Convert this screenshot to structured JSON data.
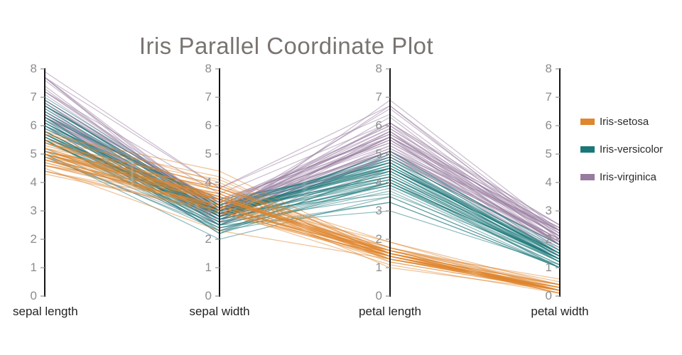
{
  "title": {
    "text": "Iris Parallel Coordinate Plot"
  },
  "legend": {
    "position": "right",
    "items": [
      {
        "label": "Iris-setosa",
        "color": "#e0862e"
      },
      {
        "label": "Iris-versicolor",
        "color": "#1b7879"
      },
      {
        "label": "Iris-virginica",
        "color": "#977ba0"
      }
    ]
  },
  "style": {
    "background": "#ffffff",
    "title_color": "#797471",
    "tick_label_color": "#8c8c8c",
    "tick_mark_color": "#999999",
    "axis_line_color": "#141414",
    "axis_title_color": "#232323",
    "line_opacity": 0.5
  },
  "chart_data": {
    "type": "parallel-coordinates",
    "title": "Iris Parallel Coordinate Plot",
    "grid": false,
    "legend_position": "right",
    "ylim": [
      0,
      8
    ],
    "axes": [
      {
        "label": "sepal length",
        "range": [
          0,
          8
        ],
        "ticks": [
          0,
          1,
          2,
          3,
          4,
          5,
          6,
          7,
          8
        ]
      },
      {
        "label": "sepal width",
        "range": [
          0,
          8
        ],
        "ticks": [
          0,
          1,
          2,
          3,
          4,
          5,
          6,
          7,
          8
        ]
      },
      {
        "label": "petal length",
        "range": [
          0,
          8
        ],
        "ticks": [
          0,
          1,
          2,
          3,
          4,
          5,
          6,
          7,
          8
        ]
      },
      {
        "label": "petal width",
        "range": [
          0,
          8
        ],
        "ticks": [
          0,
          1,
          2,
          3,
          4,
          5,
          6,
          7,
          8
        ]
      }
    ],
    "series": [
      {
        "name": "Iris-setosa",
        "color": "#e0862e",
        "rows": [
          [
            5.1,
            3.5,
            1.4,
            0.2
          ],
          [
            4.9,
            3.0,
            1.4,
            0.2
          ],
          [
            4.7,
            3.2,
            1.3,
            0.2
          ],
          [
            4.6,
            3.1,
            1.5,
            0.2
          ],
          [
            5.0,
            3.6,
            1.4,
            0.2
          ],
          [
            5.4,
            3.9,
            1.7,
            0.4
          ],
          [
            4.6,
            3.4,
            1.4,
            0.3
          ],
          [
            5.0,
            3.4,
            1.5,
            0.2
          ],
          [
            4.4,
            2.9,
            1.4,
            0.2
          ],
          [
            4.9,
            3.1,
            1.5,
            0.1
          ],
          [
            5.4,
            3.7,
            1.5,
            0.2
          ],
          [
            4.8,
            3.4,
            1.6,
            0.2
          ],
          [
            4.8,
            3.0,
            1.4,
            0.1
          ],
          [
            4.3,
            3.0,
            1.1,
            0.1
          ],
          [
            5.8,
            4.0,
            1.2,
            0.2
          ],
          [
            5.7,
            4.4,
            1.5,
            0.4
          ],
          [
            5.4,
            3.9,
            1.3,
            0.4
          ],
          [
            5.1,
            3.5,
            1.4,
            0.3
          ],
          [
            5.7,
            3.8,
            1.7,
            0.3
          ],
          [
            5.1,
            3.8,
            1.5,
            0.3
          ],
          [
            5.4,
            3.4,
            1.7,
            0.2
          ],
          [
            5.1,
            3.7,
            1.5,
            0.4
          ],
          [
            4.6,
            3.6,
            1.0,
            0.2
          ],
          [
            5.1,
            3.3,
            1.7,
            0.5
          ],
          [
            4.8,
            3.4,
            1.9,
            0.2
          ],
          [
            5.0,
            3.0,
            1.6,
            0.2
          ],
          [
            5.0,
            3.4,
            1.6,
            0.4
          ],
          [
            5.2,
            3.5,
            1.5,
            0.2
          ],
          [
            5.2,
            3.4,
            1.4,
            0.2
          ],
          [
            4.7,
            3.2,
            1.6,
            0.2
          ],
          [
            4.8,
            3.1,
            1.6,
            0.2
          ],
          [
            5.4,
            3.4,
            1.5,
            0.4
          ],
          [
            5.2,
            4.1,
            1.5,
            0.1
          ],
          [
            5.5,
            4.2,
            1.4,
            0.2
          ],
          [
            4.9,
            3.1,
            1.5,
            0.2
          ],
          [
            5.0,
            3.2,
            1.2,
            0.2
          ],
          [
            5.5,
            3.5,
            1.3,
            0.2
          ],
          [
            4.9,
            3.6,
            1.4,
            0.1
          ],
          [
            4.4,
            3.0,
            1.3,
            0.2
          ],
          [
            5.1,
            3.4,
            1.5,
            0.2
          ],
          [
            5.0,
            3.5,
            1.3,
            0.3
          ],
          [
            4.5,
            2.3,
            1.3,
            0.3
          ],
          [
            4.4,
            3.2,
            1.3,
            0.2
          ],
          [
            5.0,
            3.5,
            1.6,
            0.6
          ],
          [
            5.1,
            3.8,
            1.9,
            0.4
          ],
          [
            4.8,
            3.0,
            1.4,
            0.3
          ],
          [
            5.1,
            3.8,
            1.6,
            0.2
          ],
          [
            4.6,
            3.2,
            1.4,
            0.2
          ],
          [
            5.3,
            3.7,
            1.5,
            0.2
          ],
          [
            5.0,
            3.3,
            1.4,
            0.2
          ]
        ]
      },
      {
        "name": "Iris-versicolor",
        "color": "#1b7879",
        "rows": [
          [
            7.0,
            3.2,
            4.7,
            1.4
          ],
          [
            6.4,
            3.2,
            4.5,
            1.5
          ],
          [
            6.9,
            3.1,
            4.9,
            1.5
          ],
          [
            5.5,
            2.3,
            4.0,
            1.3
          ],
          [
            6.5,
            2.8,
            4.6,
            1.5
          ],
          [
            5.7,
            2.8,
            4.5,
            1.3
          ],
          [
            6.3,
            3.3,
            4.7,
            1.6
          ],
          [
            4.9,
            2.4,
            3.3,
            1.0
          ],
          [
            6.6,
            2.9,
            4.6,
            1.3
          ],
          [
            5.2,
            2.7,
            3.9,
            1.4
          ],
          [
            5.0,
            2.0,
            3.5,
            1.0
          ],
          [
            5.9,
            3.0,
            4.2,
            1.5
          ],
          [
            6.0,
            2.2,
            4.0,
            1.0
          ],
          [
            6.1,
            2.9,
            4.7,
            1.4
          ],
          [
            5.6,
            2.9,
            3.6,
            1.3
          ],
          [
            6.7,
            3.1,
            4.4,
            1.4
          ],
          [
            5.6,
            3.0,
            4.5,
            1.5
          ],
          [
            5.8,
            2.7,
            4.1,
            1.0
          ],
          [
            6.2,
            2.2,
            4.5,
            1.5
          ],
          [
            5.6,
            2.5,
            3.9,
            1.1
          ],
          [
            5.9,
            3.2,
            4.8,
            1.8
          ],
          [
            6.1,
            2.8,
            4.0,
            1.3
          ],
          [
            6.3,
            2.5,
            4.9,
            1.5
          ],
          [
            6.1,
            2.8,
            4.7,
            1.2
          ],
          [
            6.4,
            2.9,
            4.3,
            1.3
          ],
          [
            6.6,
            3.0,
            4.4,
            1.4
          ],
          [
            6.8,
            2.8,
            4.8,
            1.4
          ],
          [
            6.7,
            3.0,
            5.0,
            1.7
          ],
          [
            6.0,
            2.9,
            4.5,
            1.5
          ],
          [
            5.7,
            2.6,
            3.5,
            1.0
          ],
          [
            5.5,
            2.4,
            3.8,
            1.1
          ],
          [
            5.5,
            2.4,
            3.7,
            1.0
          ],
          [
            5.8,
            2.7,
            3.9,
            1.2
          ],
          [
            6.0,
            2.7,
            5.1,
            1.6
          ],
          [
            5.4,
            3.0,
            4.5,
            1.5
          ],
          [
            6.0,
            3.4,
            4.5,
            1.6
          ],
          [
            6.7,
            3.1,
            4.7,
            1.5
          ],
          [
            6.3,
            2.3,
            4.4,
            1.3
          ],
          [
            5.6,
            3.0,
            4.1,
            1.3
          ],
          [
            5.5,
            2.5,
            4.0,
            1.3
          ],
          [
            5.5,
            2.6,
            4.4,
            1.2
          ],
          [
            6.1,
            3.0,
            4.6,
            1.4
          ],
          [
            5.8,
            2.6,
            4.0,
            1.2
          ],
          [
            5.0,
            2.3,
            3.3,
            1.0
          ],
          [
            5.6,
            2.7,
            4.2,
            1.3
          ],
          [
            5.7,
            3.0,
            4.2,
            1.2
          ],
          [
            5.7,
            2.9,
            4.2,
            1.3
          ],
          [
            6.2,
            2.9,
            4.3,
            1.3
          ],
          [
            5.1,
            2.5,
            3.0,
            1.1
          ],
          [
            5.7,
            2.8,
            4.1,
            1.3
          ]
        ]
      },
      {
        "name": "Iris-virginica",
        "color": "#977ba0",
        "rows": [
          [
            6.3,
            3.3,
            6.0,
            2.5
          ],
          [
            5.8,
            2.7,
            5.1,
            1.9
          ],
          [
            7.1,
            3.0,
            5.9,
            2.1
          ],
          [
            6.3,
            2.9,
            5.6,
            1.8
          ],
          [
            6.5,
            3.0,
            5.8,
            2.2
          ],
          [
            7.6,
            3.0,
            6.6,
            2.1
          ],
          [
            4.9,
            2.5,
            4.5,
            1.7
          ],
          [
            7.3,
            2.9,
            6.3,
            1.8
          ],
          [
            6.7,
            2.5,
            5.8,
            1.8
          ],
          [
            7.2,
            3.6,
            6.1,
            2.5
          ],
          [
            6.5,
            3.2,
            5.1,
            2.0
          ],
          [
            6.4,
            2.7,
            5.3,
            1.9
          ],
          [
            6.8,
            3.0,
            5.5,
            2.1
          ],
          [
            5.7,
            2.5,
            5.0,
            2.0
          ],
          [
            5.8,
            2.8,
            5.1,
            2.4
          ],
          [
            6.4,
            3.2,
            5.3,
            2.3
          ],
          [
            6.5,
            3.0,
            5.5,
            1.8
          ],
          [
            7.7,
            3.8,
            6.7,
            2.2
          ],
          [
            7.7,
            2.6,
            6.9,
            2.3
          ],
          [
            6.0,
            2.2,
            5.0,
            1.5
          ],
          [
            6.9,
            3.2,
            5.7,
            2.3
          ],
          [
            5.6,
            2.8,
            4.9,
            2.0
          ],
          [
            7.7,
            2.8,
            6.7,
            2.0
          ],
          [
            6.3,
            2.7,
            4.9,
            1.8
          ],
          [
            6.7,
            3.3,
            5.7,
            2.1
          ],
          [
            7.2,
            3.2,
            6.0,
            1.8
          ],
          [
            6.2,
            2.8,
            4.8,
            1.8
          ],
          [
            6.1,
            3.0,
            4.9,
            1.8
          ],
          [
            6.4,
            2.8,
            5.6,
            2.1
          ],
          [
            7.2,
            3.0,
            5.8,
            1.6
          ],
          [
            7.4,
            2.8,
            6.1,
            1.9
          ],
          [
            7.9,
            3.8,
            6.4,
            2.0
          ],
          [
            6.4,
            2.8,
            5.6,
            2.2
          ],
          [
            6.3,
            2.8,
            5.1,
            1.5
          ],
          [
            6.1,
            2.6,
            5.6,
            1.4
          ],
          [
            7.7,
            3.0,
            6.1,
            2.3
          ],
          [
            6.3,
            3.4,
            5.6,
            2.4
          ],
          [
            6.4,
            3.1,
            5.5,
            1.8
          ],
          [
            6.0,
            3.0,
            4.8,
            1.8
          ],
          [
            6.9,
            3.1,
            5.4,
            2.1
          ],
          [
            6.7,
            3.1,
            5.6,
            2.4
          ],
          [
            6.9,
            3.1,
            5.1,
            2.3
          ],
          [
            5.8,
            2.7,
            5.1,
            1.9
          ],
          [
            6.8,
            3.2,
            5.9,
            2.3
          ],
          [
            6.7,
            3.3,
            5.7,
            2.5
          ],
          [
            6.7,
            3.0,
            5.2,
            2.3
          ],
          [
            6.3,
            2.5,
            5.0,
            1.9
          ],
          [
            6.5,
            3.0,
            5.2,
            2.0
          ],
          [
            6.2,
            3.4,
            5.4,
            2.3
          ],
          [
            5.9,
            3.0,
            5.1,
            1.8
          ]
        ]
      }
    ]
  }
}
